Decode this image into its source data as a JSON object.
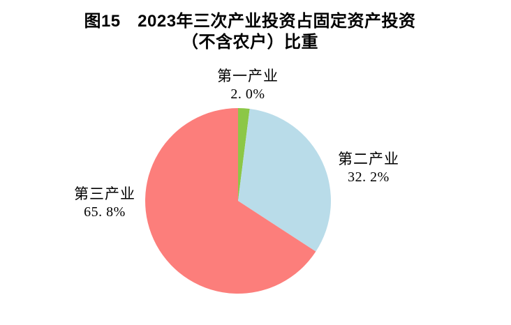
{
  "figure": {
    "title_line1": "图15　2023年三次产业投资占固定资产投资",
    "title_line2": "（不含农户）比重"
  },
  "chart_data": {
    "type": "pie",
    "title": "图15 2023年三次产业投资占固定资产投资（不含农户）比重",
    "unit": "%",
    "start_angle": "top",
    "direction": "clockwise",
    "legend": "none",
    "labels_position": "outside",
    "background_color": "#FFFFFF",
    "text_color": "#000000",
    "slices": [
      {
        "name": "第一产业",
        "value": 2.0,
        "pct_display": "2. 0%",
        "color": "#8CC747"
      },
      {
        "name": "第二产业",
        "value": 32.2,
        "pct_display": "32. 2%",
        "color": "#B9DCE9"
      },
      {
        "name": "第三产业",
        "value": 65.8,
        "pct_display": "65. 8%",
        "color": "#FC7E7B"
      }
    ]
  }
}
